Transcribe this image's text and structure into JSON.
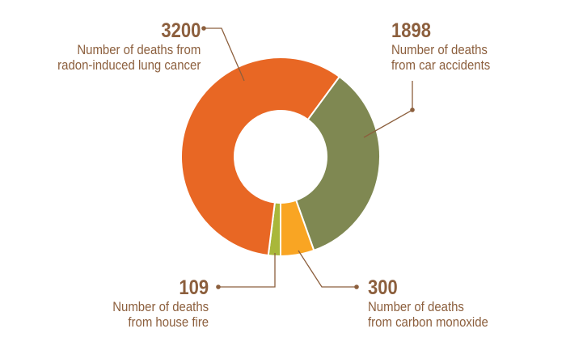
{
  "chart_data": {
    "type": "pie",
    "donut": true,
    "title": "",
    "slices": [
      {
        "value": 109,
        "label": "Number of deaths from house fire",
        "line1": "Number of deaths",
        "line2": "from house fire",
        "color": "#a9b73a"
      },
      {
        "value": 3200,
        "label": "Number of deaths from radon-induced lung cancer",
        "line1": "Number of deaths from",
        "line2": "radon-induced lung cancer",
        "color": "#e86724"
      },
      {
        "value": 1898,
        "label": "Number of deaths from car accidents",
        "line1": "Number of deaths",
        "line2": "from car accidents",
        "color": "#7f8852"
      },
      {
        "value": 300,
        "label": "Number of deaths from carbon monoxide",
        "line1": "Number of deaths",
        "line2": "from carbon monoxide",
        "color": "#f9a523"
      }
    ],
    "label_color": "#8c5f3d"
  }
}
